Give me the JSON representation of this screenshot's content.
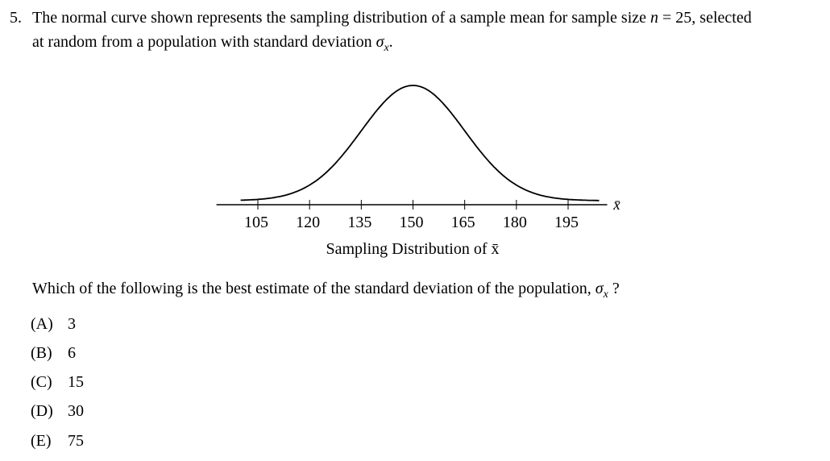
{
  "question": {
    "number": "5.",
    "stem_line1_pre": "The normal curve shown represents the sampling distribution of a sample mean for sample size",
    "stem_n_symbol": "n",
    "stem_line1_post": "= 25, selected",
    "stem_line2": "at random from a population with standard deviation",
    "sigma_symbol": "σ",
    "sigma_subscript": "x",
    "stem_line2_end": ".",
    "prompt": "Which of the following is the best estimate of the standard deviation of the population,",
    "prompt_end": "?"
  },
  "choices": [
    {
      "letter": "(A)",
      "value": "3"
    },
    {
      "letter": "(B)",
      "value": "6"
    },
    {
      "letter": "(C)",
      "value": "15"
    },
    {
      "letter": "(D)",
      "value": "30"
    },
    {
      "letter": "(E)",
      "value": "75"
    }
  ],
  "chart_data": {
    "type": "line",
    "title": "",
    "xlabel": "Sampling Distribution of x̄",
    "axis_end_label": "x̄",
    "ticks": [
      105,
      120,
      135,
      150,
      165,
      180,
      195
    ],
    "tick_labels": [
      "105",
      "120",
      "135",
      "150",
      "165",
      "180",
      "195"
    ],
    "xlim": [
      100,
      200
    ],
    "curve": {
      "mean": 150,
      "sd": 15
    },
    "grid": false
  }
}
